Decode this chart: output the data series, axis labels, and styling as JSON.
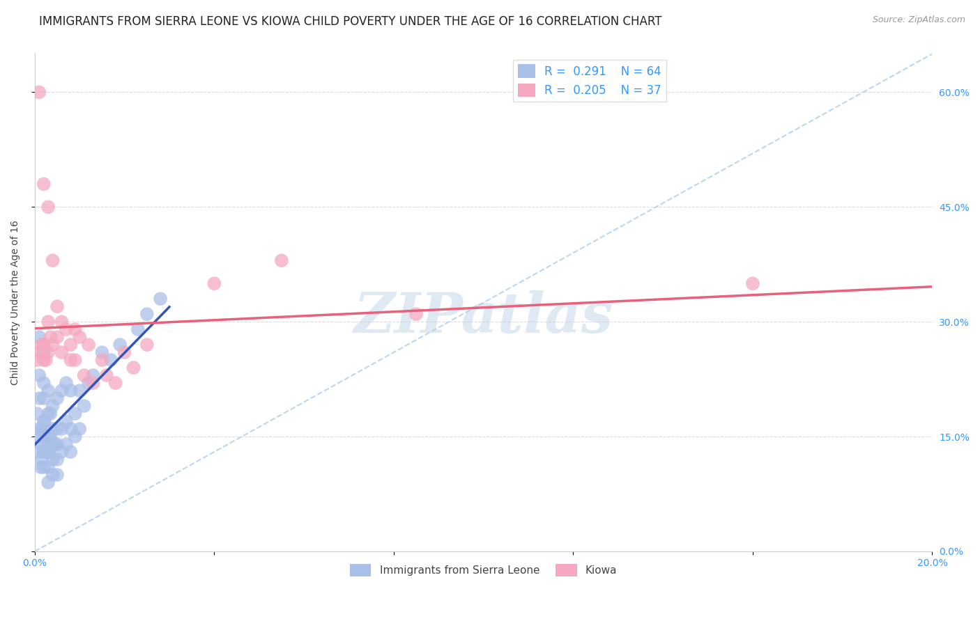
{
  "title": "IMMIGRANTS FROM SIERRA LEONE VS KIOWA CHILD POVERTY UNDER THE AGE OF 16 CORRELATION CHART",
  "source": "Source: ZipAtlas.com",
  "ylabel": "Child Poverty Under the Age of 16",
  "xlim": [
    0.0,
    0.2
  ],
  "ylim": [
    0.0,
    0.65
  ],
  "xticks": [
    0.0,
    0.04,
    0.08,
    0.12,
    0.16,
    0.2
  ],
  "yticks": [
    0.0,
    0.15,
    0.3,
    0.45,
    0.6
  ],
  "grid_color": "#cccccc",
  "background_color": "#ffffff",
  "watermark_text": "ZIPatlas",
  "watermark_color": "#b8cfe8",
  "watermark_alpha": 0.45,
  "legend_r1": "0.291",
  "legend_n1": "64",
  "legend_r2": "0.205",
  "legend_n2": "37",
  "series1_color": "#aabfe8",
  "series2_color": "#f5a8c0",
  "series1_line_color": "#3355bb",
  "series2_line_color": "#e8607a",
  "series1_name": "Immigrants from Sierra Leone",
  "series2_name": "Kiowa",
  "title_fontsize": 12,
  "axis_label_fontsize": 10,
  "tick_fontsize": 10,
  "legend_fontsize": 12,
  "blue_color": "#3399ff",
  "pink_color": "#e8607a",
  "series1_x": [
    0.0005,
    0.0007,
    0.001,
    0.001,
    0.001,
    0.001,
    0.001,
    0.0013,
    0.0015,
    0.0015,
    0.0015,
    0.002,
    0.002,
    0.002,
    0.002,
    0.002,
    0.002,
    0.002,
    0.0022,
    0.0022,
    0.0025,
    0.0025,
    0.003,
    0.003,
    0.003,
    0.003,
    0.003,
    0.003,
    0.0032,
    0.0035,
    0.0035,
    0.004,
    0.004,
    0.004,
    0.004,
    0.004,
    0.0045,
    0.005,
    0.005,
    0.005,
    0.005,
    0.005,
    0.006,
    0.006,
    0.006,
    0.007,
    0.007,
    0.007,
    0.008,
    0.008,
    0.008,
    0.009,
    0.009,
    0.01,
    0.01,
    0.011,
    0.012,
    0.013,
    0.015,
    0.017,
    0.019,
    0.023,
    0.025,
    0.028
  ],
  "series1_y": [
    0.18,
    0.13,
    0.15,
    0.16,
    0.2,
    0.23,
    0.28,
    0.11,
    0.12,
    0.14,
    0.16,
    0.11,
    0.13,
    0.15,
    0.17,
    0.2,
    0.22,
    0.26,
    0.13,
    0.17,
    0.14,
    0.16,
    0.09,
    0.11,
    0.13,
    0.15,
    0.18,
    0.21,
    0.13,
    0.15,
    0.18,
    0.1,
    0.12,
    0.14,
    0.16,
    0.19,
    0.14,
    0.1,
    0.12,
    0.14,
    0.16,
    0.2,
    0.13,
    0.16,
    0.21,
    0.14,
    0.17,
    0.22,
    0.13,
    0.16,
    0.21,
    0.15,
    0.18,
    0.16,
    0.21,
    0.19,
    0.22,
    0.23,
    0.26,
    0.25,
    0.27,
    0.29,
    0.31,
    0.33
  ],
  "series2_x": [
    0.0005,
    0.001,
    0.001,
    0.0015,
    0.002,
    0.002,
    0.002,
    0.0025,
    0.003,
    0.003,
    0.003,
    0.0035,
    0.004,
    0.004,
    0.005,
    0.005,
    0.006,
    0.006,
    0.007,
    0.008,
    0.008,
    0.009,
    0.009,
    0.01,
    0.011,
    0.012,
    0.013,
    0.015,
    0.016,
    0.018,
    0.02,
    0.022,
    0.025,
    0.04,
    0.055,
    0.085,
    0.16
  ],
  "series2_y": [
    0.25,
    0.26,
    0.6,
    0.27,
    0.25,
    0.27,
    0.48,
    0.25,
    0.26,
    0.3,
    0.45,
    0.28,
    0.27,
    0.38,
    0.28,
    0.32,
    0.26,
    0.3,
    0.29,
    0.25,
    0.27,
    0.25,
    0.29,
    0.28,
    0.23,
    0.27,
    0.22,
    0.25,
    0.23,
    0.22,
    0.26,
    0.24,
    0.27,
    0.35,
    0.38,
    0.31,
    0.35
  ],
  "ref_line_x": [
    0.0,
    0.2
  ],
  "ref_line_y": [
    0.0,
    0.65
  ]
}
